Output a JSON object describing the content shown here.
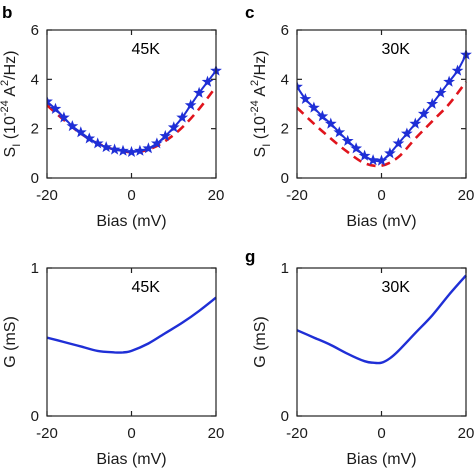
{
  "panel_letters": [
    "b",
    "c",
    "",
    "g"
  ],
  "colors": {
    "measured": "#1f2fd6",
    "fit": "#e0141c",
    "axis": "#222222"
  },
  "chart_data": [
    {
      "type": "line",
      "panel": "b",
      "annotation": "45K",
      "xlabel": "Bias (mV)",
      "ylabel": "S_I (10^-24 A^2/Hz)",
      "xlim": [
        -20,
        20
      ],
      "ylim": [
        0,
        6
      ],
      "xticks": [
        -20,
        0,
        20
      ],
      "yticks": [
        0,
        2,
        4,
        6
      ],
      "grid": false,
      "series": [
        {
          "style": "dashed",
          "x": [
            -20,
            -16,
            -12,
            -8,
            -4,
            0,
            4,
            8,
            12,
            16,
            20
          ],
          "y": [
            2.95,
            2.35,
            1.8,
            1.4,
            1.15,
            1.05,
            1.15,
            1.5,
            2.05,
            2.8,
            3.7
          ]
        },
        {
          "style": "line-star",
          "x": [
            -20,
            -18,
            -16,
            -14,
            -12,
            -10,
            -8,
            -6,
            -4,
            -2,
            0,
            2,
            4,
            6,
            8,
            10,
            12,
            14,
            16,
            18,
            20
          ],
          "y": [
            3.1,
            2.8,
            2.45,
            2.1,
            1.85,
            1.6,
            1.4,
            1.25,
            1.15,
            1.1,
            1.05,
            1.1,
            1.2,
            1.4,
            1.7,
            2.05,
            2.45,
            2.95,
            3.45,
            3.9,
            4.35
          ]
        }
      ]
    },
    {
      "type": "line",
      "panel": "c",
      "annotation": "30K",
      "xlabel": "Bias (mV)",
      "ylabel": "S_I (10^-24 A^2/Hz)",
      "xlim": [
        -20,
        20
      ],
      "ylim": [
        0,
        6
      ],
      "xticks": [
        -20,
        0,
        20
      ],
      "yticks": [
        0,
        2,
        4,
        6
      ],
      "grid": false,
      "series": [
        {
          "style": "dashed",
          "x": [
            -20,
            -16,
            -12,
            -8,
            -4,
            0,
            4,
            8,
            12,
            16,
            20
          ],
          "y": [
            2.85,
            2.2,
            1.6,
            1.05,
            0.6,
            0.5,
            0.85,
            1.6,
            2.3,
            3.0,
            3.9
          ]
        },
        {
          "style": "line-star",
          "x": [
            -20,
            -18,
            -16,
            -14,
            -12,
            -10,
            -8,
            -6,
            -4,
            -2,
            0,
            2,
            4,
            6,
            8,
            10,
            12,
            14,
            16,
            18,
            20
          ],
          "y": [
            3.7,
            3.2,
            2.85,
            2.5,
            2.2,
            1.85,
            1.5,
            1.2,
            0.9,
            0.72,
            0.7,
            1.0,
            1.4,
            1.8,
            2.2,
            2.6,
            3.0,
            3.45,
            3.9,
            4.35,
            5.0
          ]
        }
      ]
    },
    {
      "type": "line",
      "panel": "",
      "annotation": "45K",
      "xlabel": "Bias (mV)",
      "ylabel": "G (mS)",
      "xlim": [
        -20,
        20
      ],
      "ylim": [
        0,
        1
      ],
      "xticks": [
        -20,
        0,
        20
      ],
      "yticks": [
        0,
        1
      ],
      "grid": false,
      "series": [
        {
          "style": "solid",
          "x": [
            -20,
            -16,
            -12,
            -8,
            -4,
            -2,
            0,
            4,
            8,
            12,
            16,
            20
          ],
          "y": [
            0.53,
            0.5,
            0.47,
            0.44,
            0.43,
            0.43,
            0.44,
            0.49,
            0.56,
            0.63,
            0.71,
            0.8
          ]
        }
      ]
    },
    {
      "type": "line",
      "panel": "g",
      "annotation": "30K",
      "xlabel": "Bias (mV)",
      "ylabel": "G (mS)",
      "xlim": [
        -20,
        20
      ],
      "ylim": [
        0,
        1
      ],
      "xticks": [
        -20,
        0,
        20
      ],
      "yticks": [
        0,
        1
      ],
      "grid": false,
      "series": [
        {
          "style": "solid",
          "x": [
            -20,
            -16,
            -12,
            -8,
            -4,
            -2,
            0,
            2,
            4,
            8,
            12,
            16,
            20
          ],
          "y": [
            0.58,
            0.53,
            0.48,
            0.42,
            0.37,
            0.36,
            0.36,
            0.39,
            0.44,
            0.56,
            0.68,
            0.82,
            0.95
          ]
        }
      ]
    }
  ]
}
